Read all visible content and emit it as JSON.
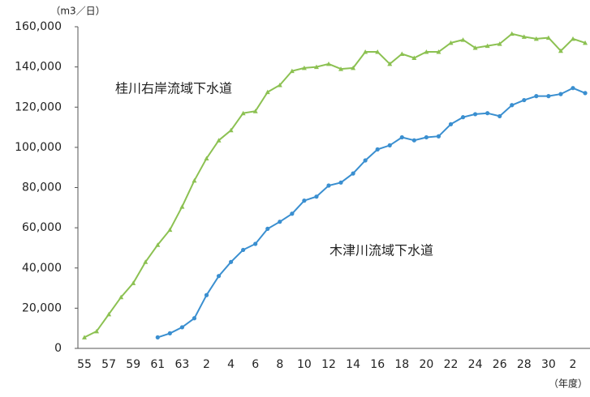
{
  "chart_data": {
    "type": "line",
    "y_unit_label": "（m3／日）",
    "x_unit_label": "（年度）",
    "categories": [
      "55",
      null,
      "57",
      null,
      "59",
      null,
      "61",
      null,
      "63",
      null,
      "2",
      null,
      "4",
      null,
      "6",
      null,
      "8",
      null,
      "10",
      null,
      "12",
      null,
      "14",
      null,
      "16",
      null,
      "18",
      null,
      "20",
      null,
      "22",
      null,
      "24",
      null,
      "26",
      null,
      "28",
      null,
      "30",
      null,
      "2",
      null
    ],
    "series": [
      {
        "name": "桂川右岸流域下水道",
        "color": "#8cc152",
        "values": [
          5500,
          8500,
          17000,
          25500,
          32500,
          43000,
          51500,
          59000,
          70500,
          83500,
          94500,
          103500,
          108500,
          117000,
          118000,
          127500,
          131000,
          138000,
          139500,
          140000,
          141500,
          139000,
          139500,
          147500,
          147500,
          141500,
          146500,
          144500,
          147500,
          147500,
          152000,
          153500,
          149500,
          150500,
          151500,
          156500,
          155000,
          154000,
          154500,
          148000,
          154000,
          152000
        ]
      },
      {
        "name": "木津川流域下水道",
        "color": "#3a8fd0",
        "values": [
          null,
          null,
          null,
          null,
          null,
          null,
          5500,
          7500,
          10500,
          15000,
          26500,
          36000,
          43000,
          49000,
          52000,
          59500,
          63000,
          67000,
          73500,
          75500,
          81000,
          82500,
          87000,
          93500,
          99000,
          101000,
          105000,
          103500,
          105000,
          105500,
          111500,
          115000,
          116500,
          117000,
          115500,
          121000,
          123500,
          125500,
          125500,
          126500,
          129500,
          127000
        ]
      }
    ],
    "ylim": [
      0,
      160000
    ],
    "yticks": [
      0,
      {
        "value": 20000,
        "label": "20,000"
      },
      {
        "value": 40000,
        "label": "40,000"
      },
      {
        "value": 60000,
        "label": "60,000"
      },
      {
        "value": 80000,
        "label": "80,000"
      },
      {
        "value": 100000,
        "label": "100,000"
      },
      {
        "value": 120000,
        "label": "120,000"
      },
      {
        "value": 140000,
        "label": "140,000"
      },
      {
        "value": 160000,
        "label": "160,000"
      }
    ],
    "grid": false
  }
}
